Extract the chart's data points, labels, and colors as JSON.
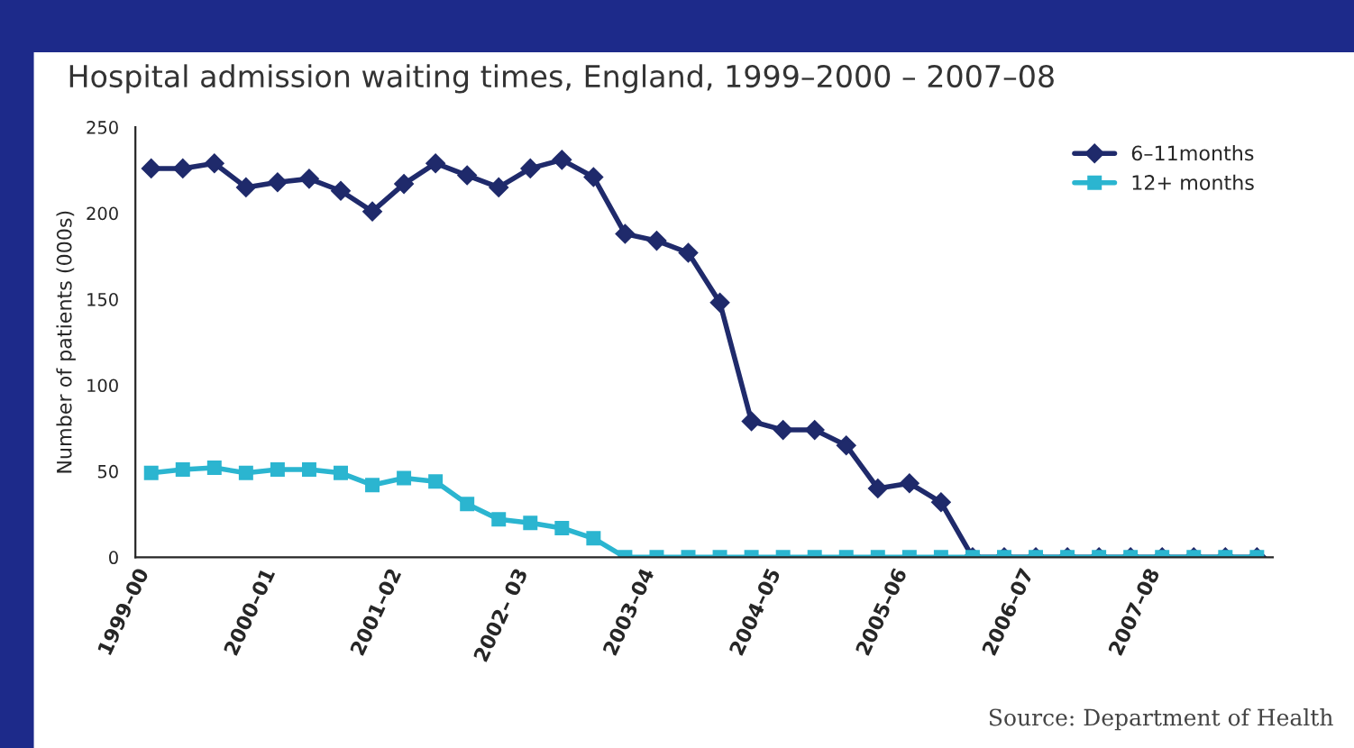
{
  "chart_data": {
    "type": "line",
    "title": "Hospital admission waiting times, England, 1999–2000 – 2007–08",
    "ylabel": "Number of patients (000s)",
    "categories": [
      "1999–00",
      null,
      null,
      null,
      "2000–01",
      null,
      null,
      null,
      "2001–02",
      null,
      null,
      null,
      "2002– 03",
      null,
      null,
      null,
      "2003–04",
      null,
      null,
      null,
      "2004–05",
      null,
      null,
      null,
      "2005–06",
      null,
      null,
      null,
      "2006–07",
      null,
      null,
      null,
      "2007–08",
      null,
      null,
      null
    ],
    "series": [
      {
        "name": "6–11months",
        "color": "#1f2a6b",
        "marker": "diamond",
        "values": [
          226,
          226,
          229,
          215,
          218,
          220,
          213,
          201,
          217,
          229,
          222,
          215,
          226,
          231,
          221,
          188,
          184,
          177,
          148,
          79,
          74,
          74,
          65,
          40,
          43,
          32,
          0,
          0,
          0,
          0,
          0,
          0,
          0,
          0,
          0,
          0
        ]
      },
      {
        "name": "12+ months",
        "color": "#2bb5d0",
        "marker": "square",
        "values": [
          49,
          51,
          52,
          49,
          51,
          51,
          49,
          42,
          46,
          44,
          31,
          22,
          20,
          17,
          11,
          0,
          0,
          0,
          0,
          0,
          0,
          0,
          0,
          0,
          0,
          0,
          0,
          0,
          0,
          0,
          0,
          0,
          0,
          0,
          0,
          0
        ]
      }
    ],
    "ylim": [
      0,
      250
    ],
    "yticks": [
      0,
      50,
      100,
      150,
      200,
      250
    ],
    "grid": false,
    "legend": "top right",
    "line_style": "solid",
    "annotations": [
      "Source: Department of Health"
    ]
  }
}
